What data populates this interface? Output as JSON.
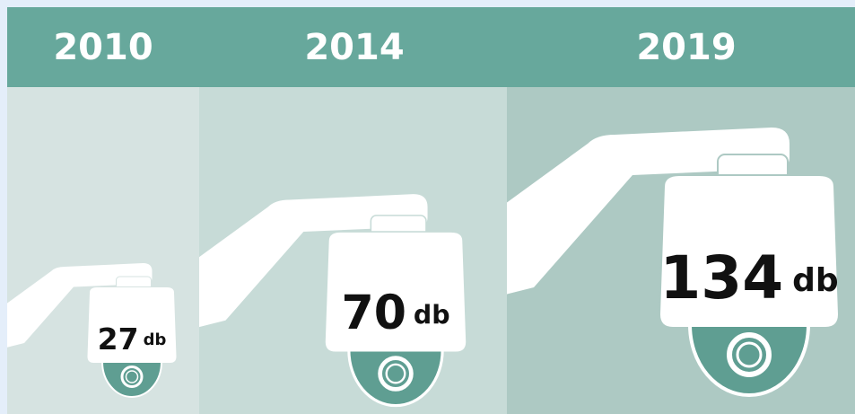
{
  "panels": [
    {
      "year": "2010",
      "value": 27,
      "unit": "db"
    },
    {
      "year": "2014",
      "value": 70,
      "unit": "db"
    },
    {
      "year": "2019",
      "value": 134,
      "unit": "db"
    }
  ]
}
